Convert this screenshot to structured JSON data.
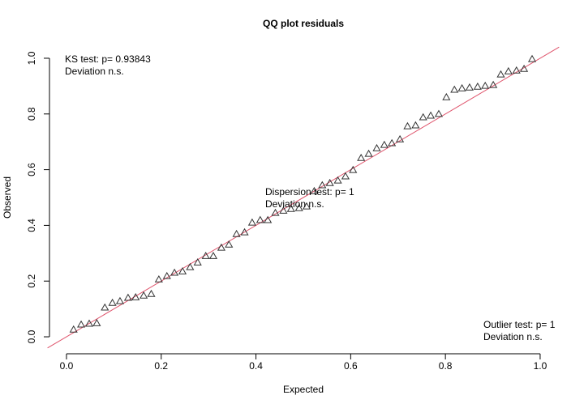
{
  "chart_data": {
    "type": "scatter",
    "title": "QQ plot residuals",
    "x_label": "Expected",
    "y_label": "Observed",
    "xlim": [
      -0.04,
      1.04
    ],
    "ylim": [
      -0.04,
      1.04
    ],
    "xticks": [
      {
        "value": 0,
        "label": "0.0"
      },
      {
        "value": 0.2,
        "label": "0.2"
      },
      {
        "value": 0.4,
        "label": "0.4"
      },
      {
        "value": 0.6,
        "label": "0.6"
      },
      {
        "value": 0.8,
        "label": "0.8"
      },
      {
        "value": 1,
        "label": "1.0"
      }
    ],
    "yticks": [
      {
        "value": 0,
        "label": "0.0"
      },
      {
        "value": 0.2,
        "label": "0.2"
      },
      {
        "value": 0.4,
        "label": "0.4"
      },
      {
        "value": 0.6,
        "label": "0.6"
      },
      {
        "value": 0.8,
        "label": "0.8"
      },
      {
        "value": 1,
        "label": "1.0"
      }
    ],
    "marker_color": "#333333",
    "abline": {
      "intercept": 0,
      "slope": 1,
      "color": "#df536b"
    },
    "x": [
      0.015,
      0.031,
      0.048,
      0.064,
      0.081,
      0.097,
      0.113,
      0.13,
      0.146,
      0.163,
      0.179,
      0.195,
      0.212,
      0.228,
      0.245,
      0.261,
      0.277,
      0.294,
      0.31,
      0.327,
      0.343,
      0.359,
      0.376,
      0.392,
      0.409,
      0.425,
      0.441,
      0.458,
      0.474,
      0.491,
      0.507,
      0.523,
      0.54,
      0.556,
      0.573,
      0.589,
      0.605,
      0.622,
      0.638,
      0.655,
      0.671,
      0.687,
      0.704,
      0.72,
      0.737,
      0.753,
      0.769,
      0.786,
      0.802,
      0.819,
      0.835,
      0.851,
      0.868,
      0.884,
      0.901,
      0.917,
      0.933,
      0.95,
      0.966,
      0.983
    ],
    "values": [
      0.026,
      0.044,
      0.047,
      0.049,
      0.105,
      0.122,
      0.128,
      0.14,
      0.142,
      0.148,
      0.154,
      0.206,
      0.218,
      0.23,
      0.235,
      0.25,
      0.267,
      0.29,
      0.29,
      0.32,
      0.331,
      0.369,
      0.375,
      0.41,
      0.419,
      0.419,
      0.445,
      0.453,
      0.459,
      0.462,
      0.468,
      0.523,
      0.544,
      0.552,
      0.561,
      0.576,
      0.599,
      0.642,
      0.657,
      0.677,
      0.689,
      0.695,
      0.709,
      0.756,
      0.759,
      0.788,
      0.794,
      0.8,
      0.86,
      0.887,
      0.892,
      0.895,
      0.898,
      0.901,
      0.904,
      0.942,
      0.953,
      0.956,
      0.962,
      0.997
    ],
    "annotations": [
      {
        "lines": [
          "KS test: p= 0.93843",
          "Deviation  n.s."
        ]
      },
      {
        "lines": [
          "Dispersion test: p= 1",
          "Deviation  n.s."
        ]
      },
      {
        "lines": [
          "Outlier test: p= 1",
          "Deviation  n.s."
        ]
      }
    ]
  }
}
